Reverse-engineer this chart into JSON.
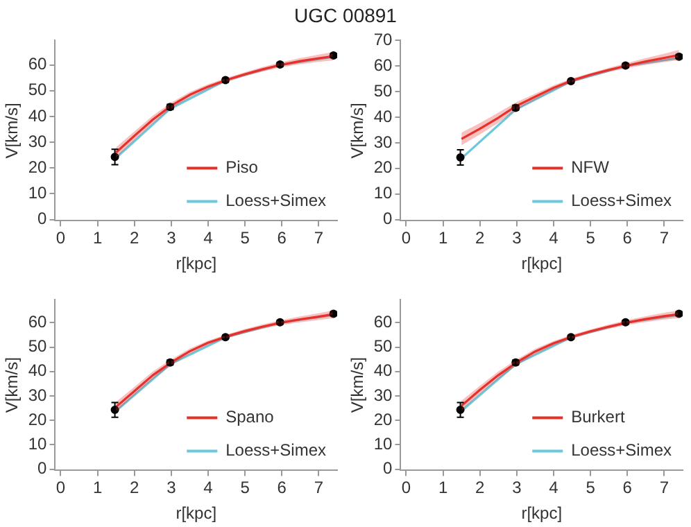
{
  "chart_data": [
    {
      "type": "line",
      "title": "UGC 00891",
      "xlabel": "r[kpc]",
      "ylabel": "V[km/s]",
      "xlim": [
        -0.15,
        7.5
      ],
      "ylim": [
        -0.5,
        69.5
      ],
      "xticks": [
        0,
        1,
        2,
        3,
        4,
        5,
        6,
        7
      ],
      "yticks": [
        0,
        10,
        20,
        30,
        40,
        50,
        60
      ],
      "legend": "bottom right",
      "grid": false,
      "series": [
        {
          "name": "Piso",
          "color": "#e8302a",
          "x": [
            1.5,
            2,
            2.5,
            3,
            3.5,
            4,
            4.5,
            5,
            5.5,
            6,
            6.5,
            7,
            7.4
          ],
          "values": [
            26,
            32.5,
            38.8,
            44.2,
            48.4,
            51.6,
            54.2,
            56.4,
            58.4,
            60.1,
            61.5,
            62.6,
            63.4
          ],
          "lower": [
            24,
            30.8,
            37.3,
            43,
            47.3,
            50.7,
            53.4,
            55.6,
            57.5,
            59.1,
            60.3,
            61.2,
            61.8
          ],
          "upper": [
            28,
            34.2,
            40.3,
            45.4,
            49.5,
            52.5,
            55,
            57.2,
            59.3,
            61.1,
            62.7,
            64,
            65
          ]
        },
        {
          "name": "Loess+Simex",
          "color": "#6cc8dc",
          "x": [
            1.47,
            2.97,
            4.47,
            5.95,
            7.4
          ],
          "values": [
            23.5,
            43,
            54,
            60,
            63.2
          ]
        },
        {
          "type": "scatter",
          "color": "#000000",
          "marker": "circle",
          "x": [
            1.47,
            2.97,
            4.47,
            5.95,
            7.4
          ],
          "values": [
            24.3,
            43.7,
            54.1,
            60.2,
            63.7
          ],
          "errors": [
            3,
            1,
            0.8,
            0.8,
            0.8
          ]
        }
      ]
    },
    {
      "type": "line",
      "xlabel": "r[kpc]",
      "ylabel": "V[km/s]",
      "xlim": [
        -0.15,
        7.5
      ],
      "ylim": [
        -0.5,
        70
      ],
      "xticks": [
        0,
        1,
        2,
        3,
        4,
        5,
        6,
        7
      ],
      "yticks": [
        0,
        10,
        20,
        30,
        40,
        50,
        60,
        70
      ],
      "legend": "bottom right",
      "grid": false,
      "series": [
        {
          "name": "NFW",
          "color": "#e8302a",
          "x": [
            1.5,
            2,
            2.5,
            3,
            3.5,
            4,
            4.5,
            5,
            5.5,
            6,
            6.5,
            7,
            7.4
          ],
          "values": [
            31.5,
            35.5,
            39.8,
            44.5,
            48,
            51.5,
            54.4,
            56.6,
            58.5,
            60.2,
            61.8,
            63.2,
            64.3
          ],
          "lower": [
            29,
            33.3,
            37.8,
            43,
            46.8,
            50.5,
            53.6,
            55.9,
            57.7,
            59.2,
            60.5,
            61.6,
            62.3
          ],
          "upper": [
            34,
            37.7,
            41.8,
            46,
            49.2,
            52.5,
            55.2,
            57.3,
            59.3,
            61.2,
            63.1,
            64.8,
            66.3
          ]
        },
        {
          "name": "Loess+Simex",
          "color": "#6cc8dc",
          "x": [
            1.47,
            2.97,
            4.47,
            5.95,
            7.4
          ],
          "values": [
            23.5,
            43,
            54,
            60,
            63.2
          ]
        },
        {
          "type": "scatter",
          "color": "#000000",
          "marker": "circle",
          "x": [
            1.47,
            2.97,
            4.47,
            5.95,
            7.4
          ],
          "values": [
            24.3,
            43.7,
            54.1,
            60.2,
            63.7
          ],
          "errors": [
            3,
            1,
            0.8,
            0.8,
            0.8
          ]
        }
      ]
    },
    {
      "type": "line",
      "xlabel": "r[kpc]",
      "ylabel": "V[km/s]",
      "xlim": [
        -0.15,
        7.5
      ],
      "ylim": [
        -0.5,
        69.5
      ],
      "xticks": [
        0,
        1,
        2,
        3,
        4,
        5,
        6,
        7
      ],
      "yticks": [
        0,
        10,
        20,
        30,
        40,
        50,
        60
      ],
      "legend": "bottom right",
      "grid": false,
      "series": [
        {
          "name": "Spano",
          "color": "#e8302a",
          "x": [
            1.5,
            2,
            2.5,
            3,
            3.5,
            4,
            4.5,
            5,
            5.5,
            6,
            6.5,
            7,
            7.4
          ],
          "values": [
            25.5,
            32,
            38.5,
            43.8,
            48.3,
            51.8,
            54.4,
            56.6,
            58.5,
            60.1,
            61.4,
            62.5,
            63.5
          ],
          "lower": [
            23.5,
            30.3,
            37,
            42.6,
            47.2,
            50.9,
            53.6,
            55.8,
            57.6,
            59.1,
            60.2,
            61.1,
            61.9
          ],
          "upper": [
            27.5,
            33.7,
            40,
            45,
            49.4,
            52.7,
            55.2,
            57.4,
            59.4,
            61.1,
            62.6,
            63.9,
            65.1
          ]
        },
        {
          "name": "Loess+Simex",
          "color": "#6cc8dc",
          "x": [
            1.47,
            2.97,
            4.47,
            5.95,
            7.4
          ],
          "values": [
            23.5,
            43,
            54,
            60,
            63.2
          ]
        },
        {
          "type": "scatter",
          "color": "#000000",
          "marker": "circle",
          "x": [
            1.47,
            2.97,
            4.47,
            5.95,
            7.4
          ],
          "values": [
            24.3,
            43.7,
            54.1,
            60.2,
            63.7
          ],
          "errors": [
            3,
            1,
            0.8,
            0.8,
            0.8
          ]
        }
      ]
    },
    {
      "type": "line",
      "xlabel": "r[kpc]",
      "ylabel": "V[km/s]",
      "xlim": [
        -0.15,
        7.5
      ],
      "ylim": [
        -0.5,
        69.5
      ],
      "xticks": [
        0,
        1,
        2,
        3,
        4,
        5,
        6,
        7
      ],
      "yticks": [
        0,
        10,
        20,
        30,
        40,
        50,
        60
      ],
      "legend": "bottom right",
      "grid": false,
      "series": [
        {
          "name": "Burkert",
          "color": "#e8302a",
          "x": [
            1.5,
            2,
            2.5,
            3,
            3.5,
            4,
            4.5,
            5,
            5.5,
            6,
            6.5,
            7,
            7.4
          ],
          "values": [
            26,
            32.5,
            38.5,
            43.8,
            48.2,
            51.6,
            54.3,
            56.5,
            58.4,
            60.1,
            61.5,
            62.7,
            63.5
          ],
          "lower": [
            24,
            30.8,
            37,
            42.6,
            47.1,
            50.7,
            53.5,
            55.7,
            57.5,
            59.1,
            60.3,
            61.3,
            61.9
          ],
          "upper": [
            28,
            34.2,
            40,
            45,
            49.3,
            52.5,
            55.1,
            57.3,
            59.3,
            61.1,
            62.7,
            64.1,
            65.1
          ]
        },
        {
          "name": "Loess+Simex",
          "color": "#6cc8dc",
          "x": [
            1.47,
            2.97,
            4.47,
            5.95,
            7.4
          ],
          "values": [
            23.5,
            43,
            54,
            60,
            63.2
          ]
        },
        {
          "type": "scatter",
          "color": "#000000",
          "marker": "circle",
          "x": [
            1.47,
            2.97,
            4.47,
            5.95,
            7.4
          ],
          "values": [
            24.3,
            43.7,
            54.1,
            60.2,
            63.7
          ],
          "errors": [
            3,
            1,
            0.8,
            0.8,
            0.8
          ]
        }
      ]
    }
  ]
}
